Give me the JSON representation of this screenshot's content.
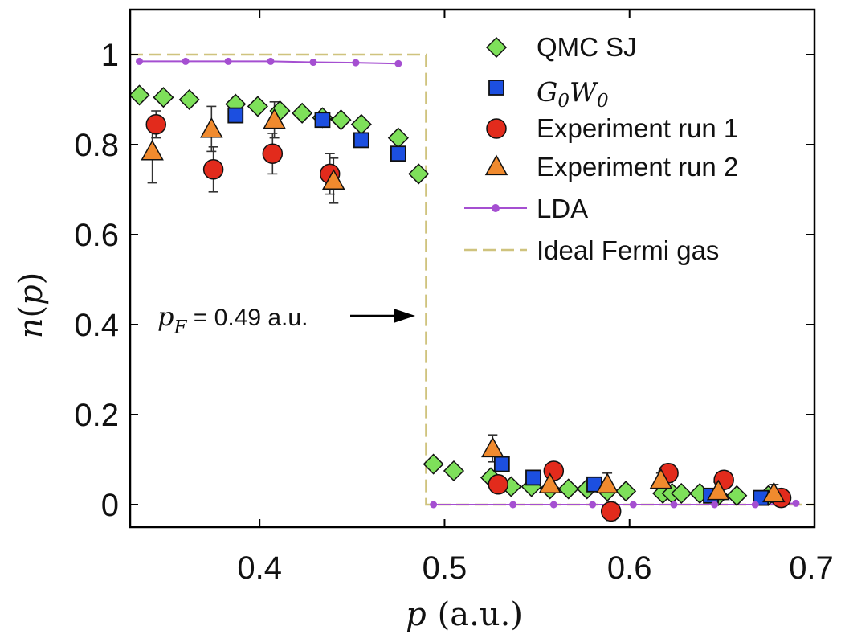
{
  "chart_data": {
    "type": "scatter",
    "xlabel": {
      "var": "p",
      "unit": "(a.u.)"
    },
    "ylabel": {
      "func": "n",
      "arg": "p"
    },
    "xlim": [
      0.33,
      0.7
    ],
    "ylim": [
      -0.05,
      1.1
    ],
    "xticks": [
      0.4,
      0.5,
      0.6,
      0.7
    ],
    "xtick_labels": [
      "0.4",
      "0.5",
      "0.6",
      "0.7"
    ],
    "yticks": [
      0,
      0.2,
      0.4,
      0.6,
      0.8,
      1
    ],
    "ytick_labels": [
      "0",
      "0.2",
      "0.4",
      "0.6",
      "0.8",
      "1"
    ],
    "grid": false,
    "legend_position": "top-right",
    "series": [
      {
        "key": "qmc",
        "name": "QMC SJ",
        "marker": "diamond",
        "color": "#7ee05a",
        "x": [
          0.335,
          0.348,
          0.362,
          0.387,
          0.399,
          0.411,
          0.423,
          0.434,
          0.444,
          0.455,
          0.475,
          0.486,
          0.494,
          0.505,
          0.525,
          0.536,
          0.547,
          0.557,
          0.567,
          0.577,
          0.588,
          0.598,
          0.618,
          0.623,
          0.628,
          0.638,
          0.648,
          0.658,
          0.675
        ],
        "y": [
          0.91,
          0.905,
          0.9,
          0.89,
          0.885,
          0.875,
          0.87,
          0.86,
          0.855,
          0.845,
          0.815,
          0.735,
          0.09,
          0.075,
          0.06,
          0.04,
          0.04,
          0.035,
          0.035,
          0.035,
          0.03,
          0.03,
          0.025,
          0.025,
          0.025,
          0.025,
          0.02,
          0.02,
          0.02
        ]
      },
      {
        "key": "g0w0",
        "name": "G0W0",
        "name_main": "G",
        "name_sub1": "0",
        "name_mid": "W",
        "name_sub2": "0",
        "marker": "square",
        "color": "#1c4fe0",
        "x": [
          0.387,
          0.434,
          0.455,
          0.475,
          0.531,
          0.548,
          0.581,
          0.644,
          0.671
        ],
        "y": [
          0.865,
          0.855,
          0.81,
          0.78,
          0.09,
          0.06,
          0.045,
          0.02,
          0.015
        ]
      },
      {
        "key": "exp1",
        "name": "Experiment run 1",
        "marker": "circle",
        "color": "#e22b1c",
        "x": [
          0.344,
          0.375,
          0.407,
          0.438,
          0.529,
          0.559,
          0.59,
          0.621,
          0.651,
          0.682
        ],
        "y": [
          0.845,
          0.745,
          0.78,
          0.735,
          0.045,
          0.075,
          -0.015,
          0.07,
          0.055,
          0.015
        ],
        "err": [
          0.03,
          0.05,
          0.045,
          0.045,
          0.015,
          0.015,
          0.02,
          0.02,
          0.015,
          0.015
        ]
      },
      {
        "key": "exp2",
        "name": "Experiment run 2",
        "marker": "triangle",
        "color": "#f08a2e",
        "x": [
          0.342,
          0.374,
          0.408,
          0.44,
          0.526,
          0.557,
          0.588,
          0.617,
          0.648,
          0.678
        ],
        "y": [
          0.785,
          0.835,
          0.855,
          0.72,
          0.125,
          0.045,
          0.045,
          0.055,
          0.03,
          0.025
        ],
        "err": [
          0.07,
          0.05,
          0.04,
          0.05,
          0.03,
          0.02,
          0.025,
          0.015,
          0.02,
          0.02
        ]
      },
      {
        "key": "lda",
        "name": "LDA",
        "marker": "dot-line",
        "color": "#a54fd1",
        "x": [
          0.335,
          0.36,
          0.383,
          0.406,
          0.429,
          0.452,
          0.475,
          0.494,
          0.537,
          0.559,
          0.58,
          0.602,
          0.624,
          0.646,
          0.668,
          0.69
        ],
        "y": [
          0.985,
          0.985,
          0.985,
          0.985,
          0.983,
          0.982,
          0.98,
          0.0,
          0.0,
          0.0,
          0.0,
          0.0,
          0.0,
          0.0,
          0.0,
          0.003
        ]
      },
      {
        "key": "ideal",
        "name": "Ideal Fermi gas",
        "marker": "dashed-line",
        "color": "#cfc37e",
        "x": [
          0.33,
          0.49,
          0.49,
          0.7
        ],
        "y": [
          1.0,
          1.0,
          0.0,
          0.0
        ]
      }
    ],
    "annotation": {
      "var": "p",
      "sub": "F",
      "text": " = 0.49 a.u.",
      "arrow_to": [
        0.49,
        0.42
      ]
    }
  }
}
